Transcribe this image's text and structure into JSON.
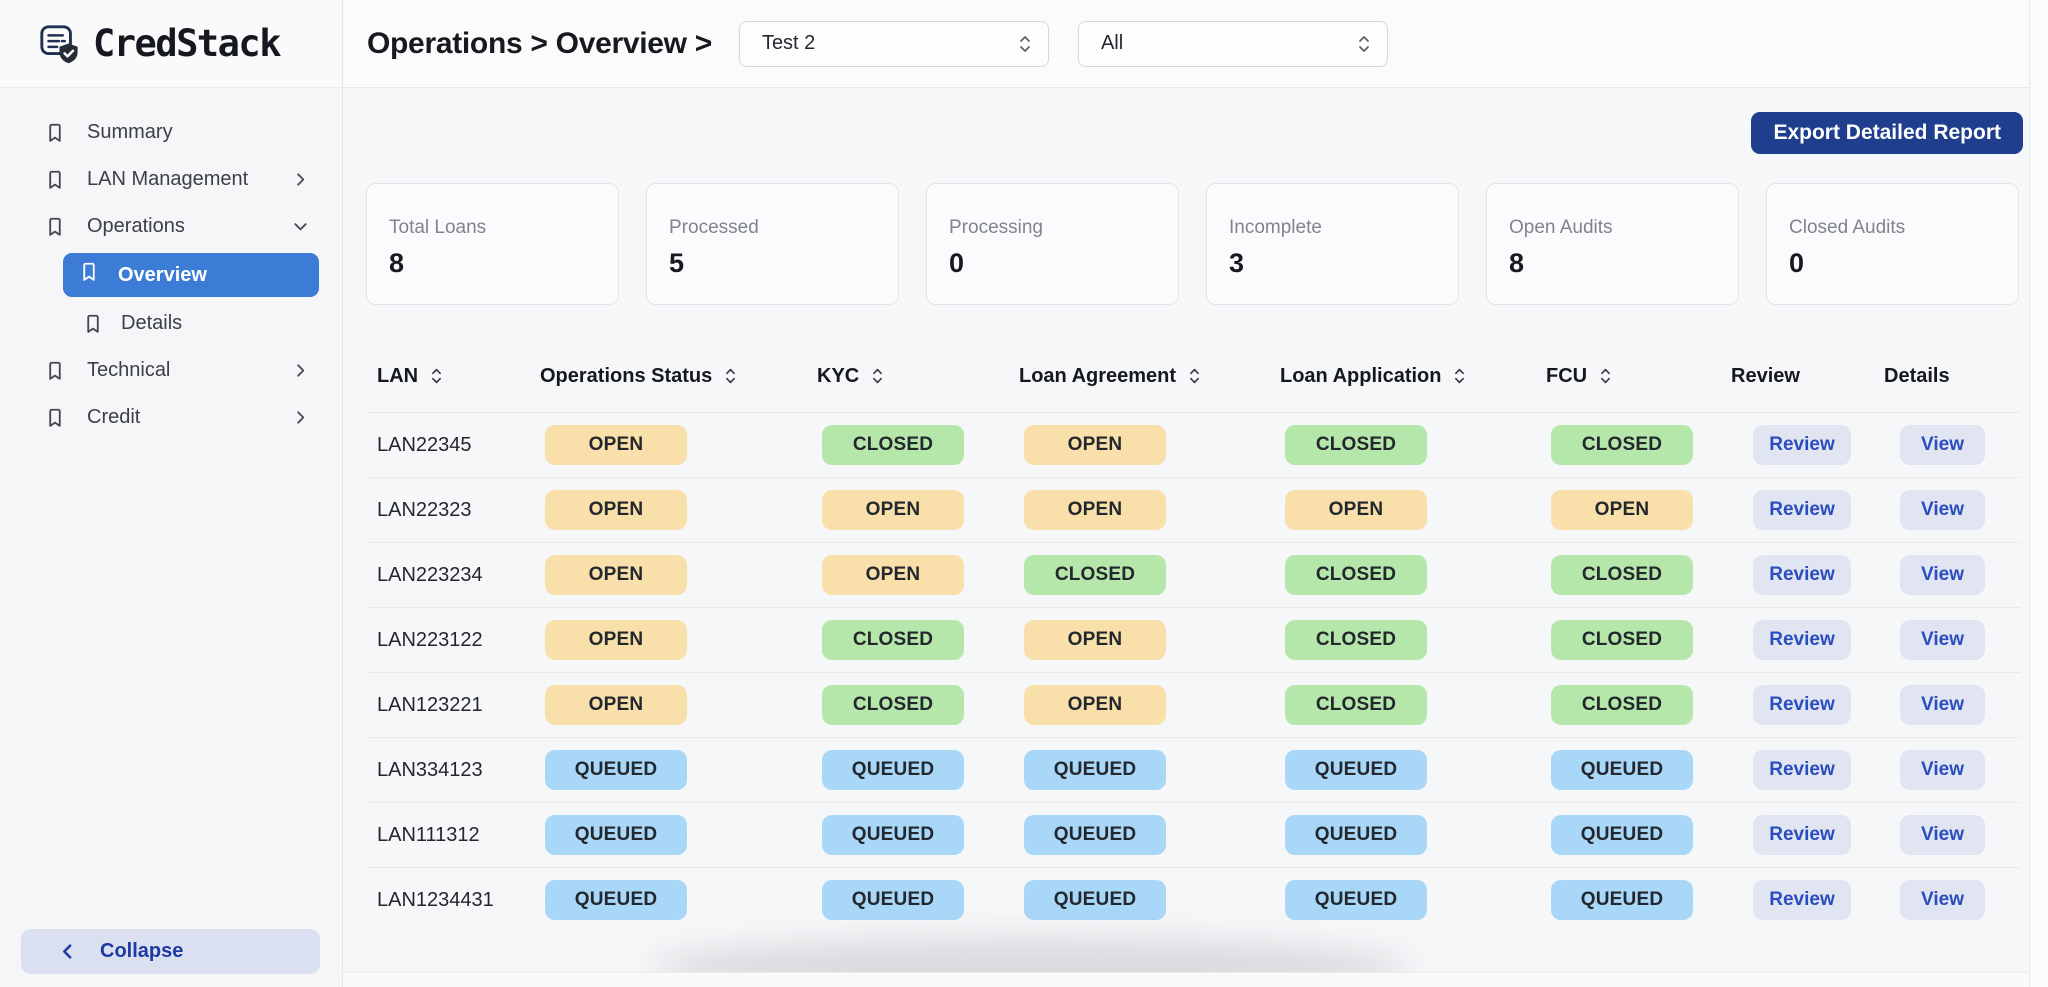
{
  "brand": {
    "name": "CredStack"
  },
  "header": {
    "breadcrumb": "Operations > Overview >",
    "filter1_value": "Test 2",
    "filter2_value": "All"
  },
  "sidebar": {
    "items": [
      {
        "label": "Summary",
        "chevron": "none",
        "selected": false
      },
      {
        "label": "LAN Management",
        "chevron": "right",
        "selected": false
      },
      {
        "label": "Operations",
        "chevron": "down",
        "selected": false,
        "children": [
          {
            "label": "Overview",
            "selected": true
          },
          {
            "label": "Details",
            "selected": false
          }
        ]
      },
      {
        "label": "Technical",
        "chevron": "right",
        "selected": false
      },
      {
        "label": "Credit",
        "chevron": "right",
        "selected": false
      }
    ],
    "collapse_label": "Collapse"
  },
  "toolbar": {
    "export_label": "Export Detailed Report"
  },
  "stats": [
    {
      "label": "Total Loans",
      "value": "8"
    },
    {
      "label": "Processed",
      "value": "5"
    },
    {
      "label": "Processing",
      "value": "0"
    },
    {
      "label": "Incomplete",
      "value": "3"
    },
    {
      "label": "Open Audits",
      "value": "8"
    },
    {
      "label": "Closed Audits",
      "value": "0"
    }
  ],
  "table": {
    "columns": [
      {
        "key": "lan",
        "label": "LAN",
        "sortable": true,
        "type": "text"
      },
      {
        "key": "operations_status",
        "label": "Operations Status",
        "sortable": true,
        "type": "status"
      },
      {
        "key": "kyc",
        "label": "KYC",
        "sortable": true,
        "type": "status"
      },
      {
        "key": "loan_agreement",
        "label": "Loan Agreement",
        "sortable": true,
        "type": "status"
      },
      {
        "key": "loan_application",
        "label": "Loan Application",
        "sortable": true,
        "type": "status"
      },
      {
        "key": "fcu",
        "label": "FCU",
        "sortable": true,
        "type": "status"
      },
      {
        "key": "review",
        "label": "Review",
        "sortable": false,
        "type": "review"
      },
      {
        "key": "details",
        "label": "Details",
        "sortable": false,
        "type": "view"
      }
    ],
    "review_label": "Review",
    "view_label": "View",
    "rows": [
      {
        "lan": "LAN22345",
        "operations_status": "OPEN",
        "kyc": "CLOSED",
        "loan_agreement": "OPEN",
        "loan_application": "CLOSED",
        "fcu": "CLOSED"
      },
      {
        "lan": "LAN22323",
        "operations_status": "OPEN",
        "kyc": "OPEN",
        "loan_agreement": "OPEN",
        "loan_application": "OPEN",
        "fcu": "OPEN"
      },
      {
        "lan": "LAN223234",
        "operations_status": "OPEN",
        "kyc": "OPEN",
        "loan_agreement": "CLOSED",
        "loan_application": "CLOSED",
        "fcu": "CLOSED"
      },
      {
        "lan": "LAN223122",
        "operations_status": "OPEN",
        "kyc": "CLOSED",
        "loan_agreement": "OPEN",
        "loan_application": "CLOSED",
        "fcu": "CLOSED"
      },
      {
        "lan": "LAN123221",
        "operations_status": "OPEN",
        "kyc": "CLOSED",
        "loan_agreement": "OPEN",
        "loan_application": "CLOSED",
        "fcu": "CLOSED"
      },
      {
        "lan": "LAN334123",
        "operations_status": "QUEUED",
        "kyc": "QUEUED",
        "loan_agreement": "QUEUED",
        "loan_application": "QUEUED",
        "fcu": "QUEUED"
      },
      {
        "lan": "LAN111312",
        "operations_status": "QUEUED",
        "kyc": "QUEUED",
        "loan_agreement": "QUEUED",
        "loan_application": "QUEUED",
        "fcu": "QUEUED"
      },
      {
        "lan": "LAN1234431",
        "operations_status": "QUEUED",
        "kyc": "QUEUED",
        "loan_agreement": "QUEUED",
        "loan_application": "QUEUED",
        "fcu": "QUEUED"
      }
    ]
  },
  "colors": {
    "accent_blue": "#3c7cd6",
    "export_navy": "#1f3e8e",
    "action_button_bg": "#e1e4f1",
    "action_button_text": "#2a4dbf",
    "status": {
      "OPEN": "#f9e0ab",
      "CLOSED": "#b6e7aa",
      "QUEUED": "#a9d7f8"
    }
  }
}
